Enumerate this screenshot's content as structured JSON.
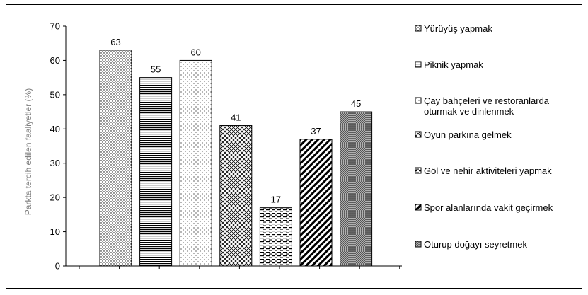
{
  "chart_data": {
    "type": "bar",
    "title": "",
    "xlabel": "",
    "ylabel": "Parkta tercih edilen faaliyetler (%)",
    "ylim": [
      0,
      70
    ],
    "yticks": [
      0,
      10,
      20,
      30,
      40,
      50,
      60,
      70
    ],
    "categories": [
      "Yürüyüş yapmak",
      "Piknik yapmak",
      "Çay bahçeleri ve restoranlarda oturmak ve dinlenmek",
      "Oyun parkına gelmek",
      "Göl ve nehir aktiviteleri yapmak",
      "Spor alanlarında vakit geçirmek",
      "Oturup doğayı seyretmek"
    ],
    "values": [
      63,
      55,
      60,
      41,
      17,
      37,
      45
    ],
    "grid": false,
    "legend_position": "right",
    "legend": [
      [
        "Yürüyüş yapmak"
      ],
      [
        "Piknik yapmak"
      ],
      [
        "Çay bahçeleri ve restoranlarda",
        "oturmak ve dinlenmek"
      ],
      [
        "Oyun parkına gelmek"
      ],
      [
        "Göl ve nehir aktiviteleri yapmak"
      ],
      [
        "Spor alanlarında vakit geçirmek"
      ],
      [
        "Oturup doğayı seyretmek"
      ]
    ],
    "patterns": [
      "dots",
      "hlines",
      "sparse-dots",
      "crosshatch",
      "dashes",
      "wide-diagonal",
      "dense-dots"
    ]
  }
}
